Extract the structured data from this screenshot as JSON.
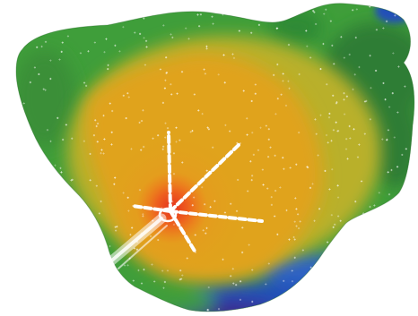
{
  "image": {
    "subject": "electroanatomical-activation-map",
    "colors": {
      "background": "#ffffff",
      "earliest": "#e5301d",
      "early": "#f07a1c",
      "mid": "#e0a31f",
      "mid_late": "#c9a925",
      "late_green": "#3f9e3a",
      "dark_green": "#2f7d34",
      "late_blue": "#2450b8",
      "latest_purple": "#3b2a8e",
      "point_marker": "#ffffff",
      "catheter": "#ffffff"
    },
    "catheter": {
      "type": "multi-spline-mapping-catheter",
      "spline_count": 5
    }
  }
}
